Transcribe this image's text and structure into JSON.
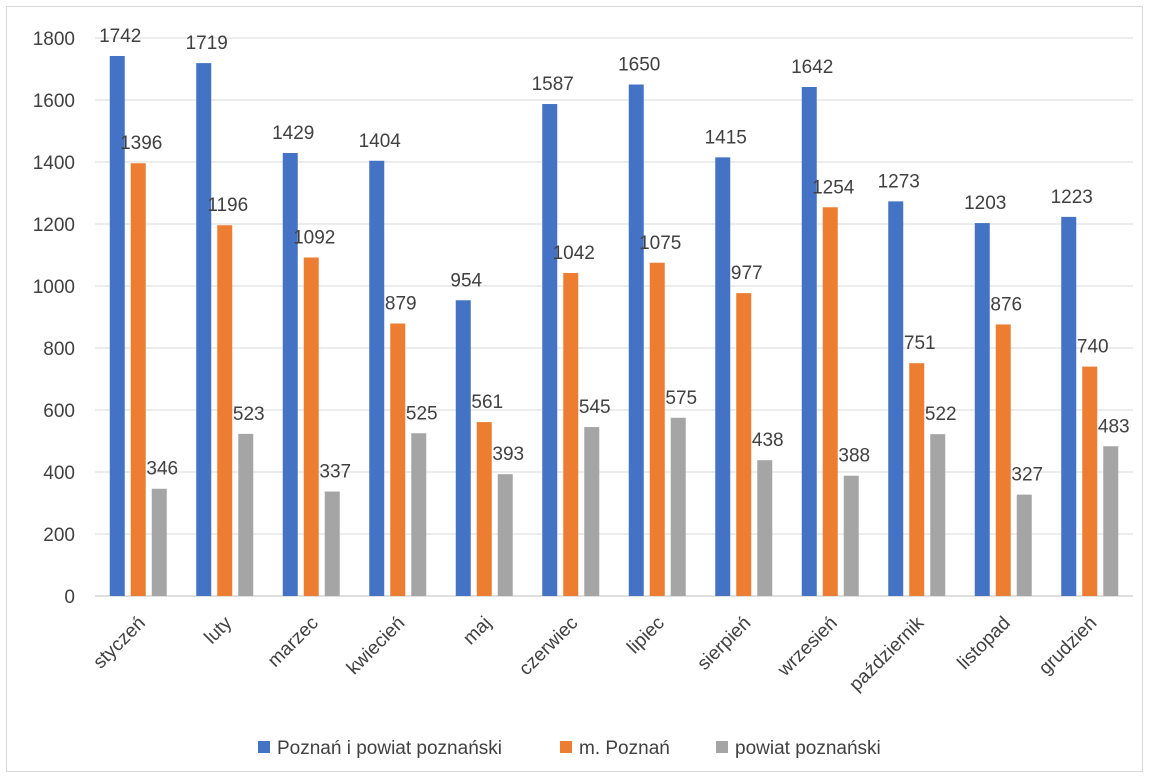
{
  "chart_data": {
    "type": "bar",
    "title": "",
    "xlabel": "",
    "ylabel": "",
    "ylim": [
      0,
      1800
    ],
    "yticks": [
      0,
      200,
      400,
      600,
      800,
      1000,
      1200,
      1400,
      1600,
      1800
    ],
    "grid": true,
    "legend_position": "bottom",
    "categories": [
      "styczeń",
      "luty",
      "marzec",
      "kwiecień",
      "maj",
      "czerwiec",
      "lipiec",
      "sierpień",
      "wrzesień",
      "październik",
      "listopad",
      "grudzień"
    ],
    "series": [
      {
        "name": "Poznań i powiat poznański",
        "color": "#4472c4",
        "values": [
          1742,
          1719,
          1429,
          1404,
          954,
          1587,
          1650,
          1415,
          1642,
          1273,
          1203,
          1223
        ]
      },
      {
        "name": "m. Poznań",
        "color": "#ed7d31",
        "values": [
          1396,
          1196,
          1092,
          879,
          561,
          1042,
          1075,
          977,
          1254,
          751,
          876,
          740
        ]
      },
      {
        "name": "powiat poznański",
        "color": "#a5a5a5",
        "values": [
          346,
          523,
          337,
          525,
          393,
          545,
          575,
          438,
          388,
          522,
          327,
          483
        ]
      }
    ]
  }
}
